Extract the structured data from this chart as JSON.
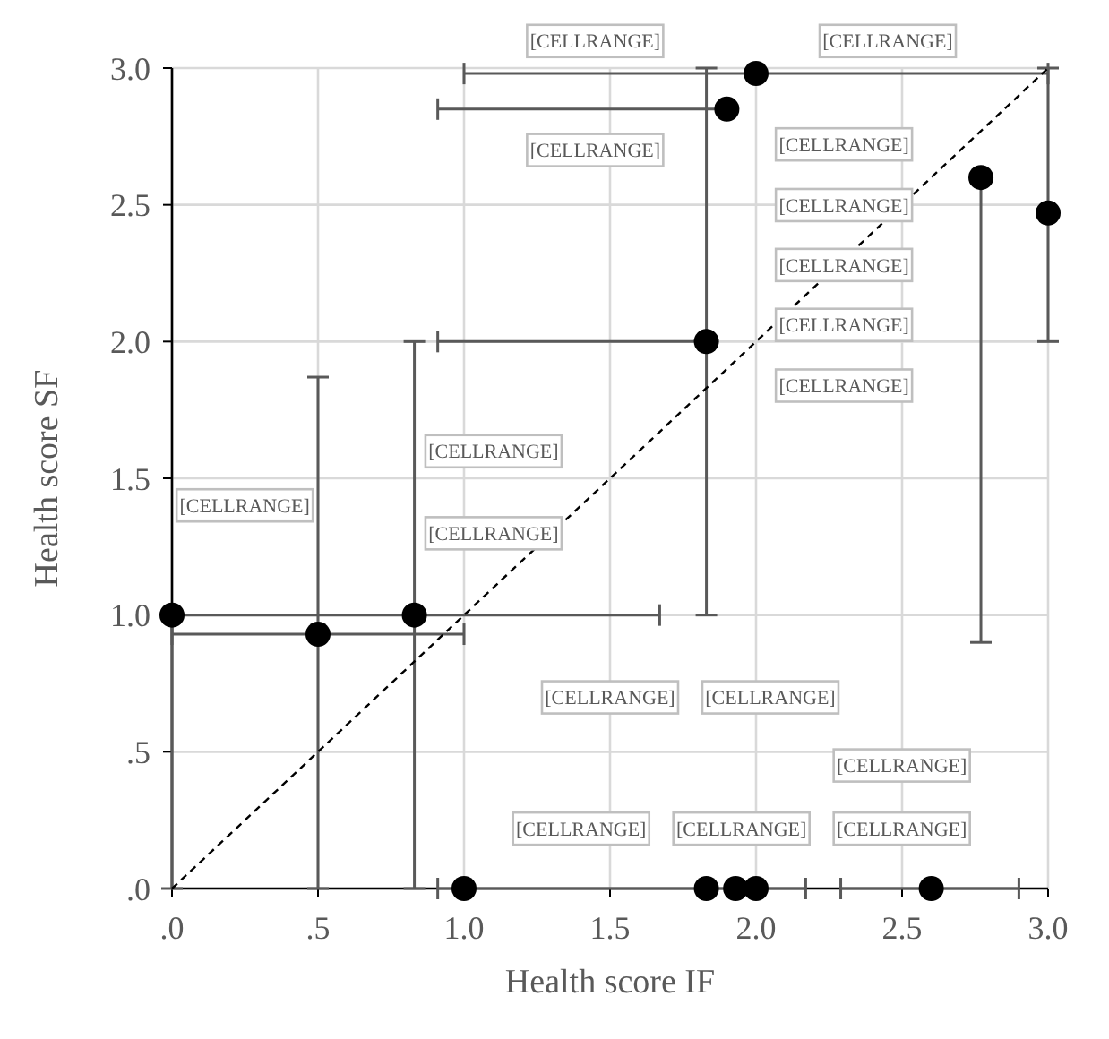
{
  "chart_data": {
    "type": "scatter",
    "xlabel": "Health score IF",
    "ylabel": "Health score SF",
    "xlim": [
      0,
      3
    ],
    "ylim": [
      0,
      3
    ],
    "xticks": [
      {
        "value": 0,
        "label": ".0"
      },
      {
        "value": 0.5,
        "label": ".5"
      },
      {
        "value": 1,
        "label": "1.0"
      },
      1.5,
      {
        "value": 2,
        "label": "2.0"
      },
      2.5,
      {
        "value": 3,
        "label": "3.0"
      }
    ],
    "yticks": [
      {
        "value": 0,
        "label": ".0"
      },
      {
        "value": 0.5,
        "label": ".5"
      },
      {
        "value": 1,
        "label": "1.0"
      },
      1.5,
      {
        "value": 2,
        "label": "2.0"
      },
      2.5,
      {
        "value": 3,
        "label": "3.0"
      }
    ],
    "grid": true,
    "marker": "circle",
    "series": [
      {
        "color": "#000000",
        "x": [
          0,
          0.5,
          0.83,
          1.0,
          1.83,
          1.83,
          1.93,
          2.0,
          2.6,
          3.0,
          2.77,
          2.0,
          1.9
        ],
        "values": [
          1,
          0.93,
          1.0,
          0,
          2.0,
          0,
          0,
          0,
          0,
          2.47,
          2.6,
          2.98,
          2.85
        ],
        "xerrors": [
          [
            0,
            1.67
          ],
          [
            0,
            1.0
          ],
          null,
          [
            0.91,
            2.17
          ],
          [
            0.91,
            1.83
          ],
          null,
          null,
          null,
          [
            2.29,
            2.9
          ],
          null,
          null,
          [
            1.0,
            3.0
          ],
          [
            0.91,
            1.9
          ]
        ],
        "errors": [
          [
            0,
            1
          ],
          [
            0,
            1.87
          ],
          [
            0,
            2.0
          ],
          null,
          [
            1.0,
            3.0
          ],
          null,
          null,
          null,
          null,
          [
            2.0,
            3.0
          ],
          [
            0.9,
            2.6
          ],
          null,
          null
        ]
      },
      {
        "type": "line",
        "color": "#000000",
        "line_style": "dashed",
        "marker": "none",
        "x": [
          0,
          3
        ],
        "values": [
          0,
          3
        ]
      }
    ],
    "annotations": [
      "[CELLRANGE]",
      "[CELLRANGE]",
      "[CELLRANGE]",
      "[CELLRANGE]",
      "[CELLRANGE]",
      "[CELLRANGE]",
      "[CELLRANGE]",
      "[CELLRANGE]",
      "[CELLRANGE]",
      "[CELLRANGE]",
      "[CELLRANGE]",
      "[CELLRANGE]",
      "[CELLRANGE]",
      "[CELLRANGE]",
      "[CELLRANGE]",
      "[CELLRANGE]",
      "[CELLRANGE]"
    ]
  }
}
